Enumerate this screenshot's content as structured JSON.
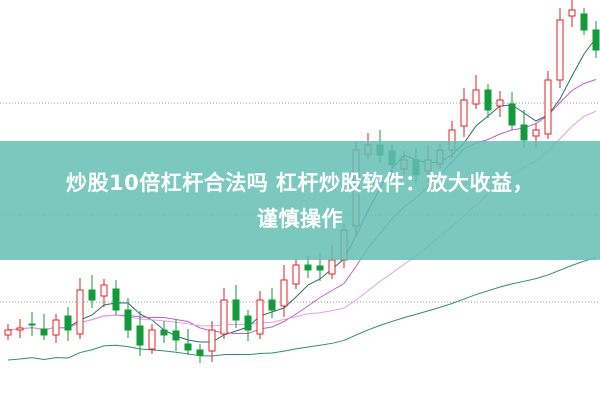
{
  "banner": {
    "line1": "炒股10倍杠杆合法吗 杠杆炒股软件：放大收益，",
    "line2": "谨慎操作"
  },
  "colors": {
    "up": "#e02020",
    "down": "#139a3a",
    "ma5": "#2a6f6a",
    "ma10": "#c060c0",
    "ma20": "#e0a0e8",
    "ma60": "#2e8f6f",
    "banner": "#64beb4"
  },
  "chart_data": {
    "type": "candlestick",
    "closes": [
      70,
      72,
      75,
      65,
      80,
      70,
      110,
      100,
      115,
      90,
      70,
      55,
      70,
      65,
      60,
      50,
      45,
      70,
      100,
      80,
      70,
      100,
      90,
      120,
      135,
      130,
      130,
      140,
      170,
      250,
      255,
      245,
      235,
      240,
      225,
      240,
      250,
      270,
      300,
      310,
      290,
      300,
      275,
      260,
      270,
      320,
      380,
      390,
      370,
      350
    ],
    "moving_averages": [
      5,
      10,
      20,
      60
    ],
    "gridlines": "dotted"
  }
}
